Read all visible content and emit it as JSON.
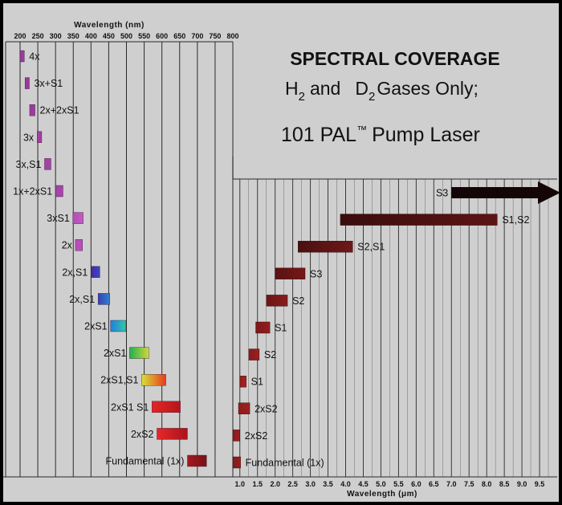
{
  "chart_data": [
    {
      "type": "bar",
      "panel": "uv-visible",
      "xlabel": "Wavelength (nm)",
      "xlim": [
        200,
        800
      ],
      "x_ticks": [
        200,
        250,
        300,
        350,
        400,
        450,
        500,
        550,
        600,
        650,
        700,
        750,
        800
      ],
      "bars": [
        {
          "label": "4x",
          "start": 200,
          "end": 212,
          "colors": [
            "#9a3a9c",
            "#9a3a9c"
          ]
        },
        {
          "label": "3x+S1",
          "start": 214,
          "end": 226,
          "colors": [
            "#9a3a9c",
            "#9a3a9c"
          ]
        },
        {
          "label": "2x+2xS1",
          "start": 227,
          "end": 242,
          "colors": [
            "#9b3b9d",
            "#9b3b9d"
          ]
        },
        {
          "label": "3x",
          "start": 248,
          "end": 261,
          "colors": [
            "#a13fa3",
            "#a13fa3"
          ]
        },
        {
          "label": "3x,S1",
          "start": 269,
          "end": 287,
          "colors": [
            "#a342a5",
            "#a342a5"
          ]
        },
        {
          "label": "1x+2xS1",
          "start": 300,
          "end": 321,
          "colors": [
            "#a644a8",
            "#a644a8"
          ]
        },
        {
          "label": "3xS1",
          "start": 349,
          "end": 378,
          "colors": [
            "#b04db4",
            "#c45bc4"
          ]
        },
        {
          "label": "2x",
          "start": 356,
          "end": 376,
          "colors": [
            "#b64fb8",
            "#b64fb8"
          ]
        },
        {
          "label": "2x,S1",
          "start": 400,
          "end": 425,
          "colors": [
            "#4a2a95",
            "#3b46c8"
          ]
        },
        {
          "label": "2x,S1",
          "start": 420,
          "end": 453,
          "colors": [
            "#3a3fb0",
            "#2e7fd6"
          ]
        },
        {
          "label": "2xS1",
          "start": 455,
          "end": 498,
          "colors": [
            "#1f7fe0",
            "#33c7a8"
          ]
        },
        {
          "label": "2xS1",
          "start": 509,
          "end": 563,
          "colors": [
            "#22b050",
            "#cfd83a"
          ]
        },
        {
          "label": "2xS1,S1",
          "start": 543,
          "end": 611,
          "colors": [
            "#d6e036",
            "#e83a20"
          ]
        },
        {
          "label": "2xS1 S1",
          "start": 572,
          "end": 652,
          "colors": [
            "#e32626",
            "#b5161c"
          ]
        },
        {
          "label": "2xS2",
          "start": 586,
          "end": 672,
          "colors": [
            "#e62828",
            "#a8141a"
          ]
        },
        {
          "label": "Fundamental (1x)",
          "start": 672,
          "end": 726,
          "colors": [
            "#a41a20",
            "#761216"
          ]
        }
      ]
    },
    {
      "type": "bar",
      "panel": "infrared",
      "xlabel": "Wavelength (μm)",
      "xlim": [
        0.8,
        10.0
      ],
      "x_ticks": [
        "1.0",
        "1.5",
        "2.0",
        "2.5",
        "3.0",
        "3.5",
        "4.0",
        "4.5",
        "5.0",
        "5.5",
        "6.0",
        "6.5",
        "7.0",
        "7.5",
        "8.0",
        "8.5",
        "9.0",
        "9.5"
      ],
      "bars": [
        {
          "label": "S3",
          "start": 7.0,
          "end": 10.0,
          "arrow": true,
          "colors": [
            "#1a0808",
            "#2a0c0c"
          ]
        },
        {
          "label": "S1,S2",
          "start": 3.85,
          "end": 8.3,
          "colors": [
            "#3a0d0d",
            "#5e1414"
          ]
        },
        {
          "label": "S2,S1",
          "start": 2.65,
          "end": 4.2,
          "colors": [
            "#4a1010",
            "#6e1818"
          ]
        },
        {
          "label": "S3",
          "start": 2.0,
          "end": 2.85,
          "colors": [
            "#5a1212",
            "#761818"
          ]
        },
        {
          "label": "S2",
          "start": 1.75,
          "end": 2.35,
          "colors": [
            "#6a1515",
            "#881c1c"
          ]
        },
        {
          "label": "S1",
          "start": 1.45,
          "end": 1.85,
          "colors": [
            "#7a1818",
            "#951e1e"
          ]
        },
        {
          "label": "S2",
          "start": 1.25,
          "end": 1.55,
          "colors": [
            "#851a1a",
            "#9e2020"
          ]
        },
        {
          "label": "S1",
          "start": 1.0,
          "end": 1.18,
          "colors": [
            "#901c1c",
            "#a82222"
          ]
        },
        {
          "label": "2xS2",
          "start": 0.96,
          "end": 1.28,
          "colors": [
            "#8e1c1c",
            "#a01f1f"
          ]
        },
        {
          "label": "2xS2",
          "start": 0.8,
          "end": 1.0,
          "colors": [
            "#8a1b1b",
            "#9c1f1f"
          ]
        },
        {
          "label": "Fundamental (1x)",
          "start": 0.8,
          "end": 1.02,
          "colors": [
            "#841a1a",
            "#961e1e"
          ]
        }
      ]
    }
  ],
  "title": {
    "line1": "SPECTRAL COVERAGE",
    "line2_h": "H",
    "line2_sub1": "2",
    "line2_mid": "and",
    "line2_d": "D",
    "line2_sub2": "2",
    "line2_end": "Gases Only;",
    "line3_main": "101 PAL",
    "line3_tm": "™",
    "line3_end": "Pump Laser"
  },
  "colors": {
    "background": "#cfcfcf",
    "frame": "#000000",
    "gridline": "#2a2a2a",
    "arrow": "#140606"
  }
}
